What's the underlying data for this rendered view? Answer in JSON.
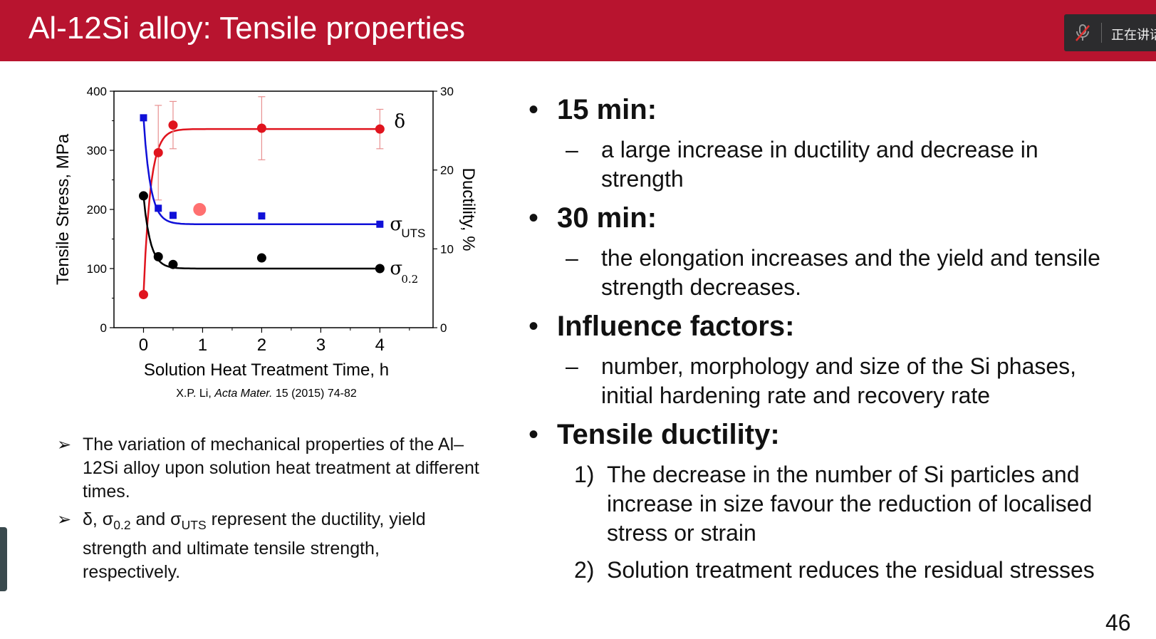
{
  "slide": {
    "title": "Al-12Si alloy: Tensile properties",
    "page_number": "46",
    "header_color": "#b8142f"
  },
  "meeting": {
    "status_text": "正在讲话",
    "mic_icon": "mic-muted-icon"
  },
  "chart_data": {
    "type": "scatter",
    "xlabel": "Solution Heat Treatment Time, h",
    "ylabel": "Tensile Stress, MPa",
    "y2label": "Ductility, %",
    "xlim": [
      -0.5,
      4.9
    ],
    "ylim": [
      0,
      400
    ],
    "y2lim": [
      0,
      30
    ],
    "xticks": [
      "0",
      "1",
      "2",
      "3",
      "4"
    ],
    "yticks": [
      "0",
      "100",
      "200",
      "300",
      "400"
    ],
    "y2ticks": [
      "0",
      "10",
      "20",
      "30"
    ],
    "series": [
      {
        "name": "δ",
        "axis": "right",
        "color": "#e0141e",
        "x": [
          0,
          0.25,
          0.5,
          2,
          4
        ],
        "y": [
          4.2,
          22.2,
          25.7,
          25.3,
          25.2
        ],
        "err": [
          0,
          6,
          3,
          4,
          2.5
        ],
        "marker": "circle"
      },
      {
        "name": "σUTS",
        "axis": "left",
        "color": "#1010d8",
        "x": [
          0,
          0.25,
          0.5,
          2,
          4
        ],
        "y": [
          355,
          202,
          190,
          189,
          175
        ],
        "marker": "square"
      },
      {
        "name": "σ0.2",
        "axis": "left",
        "color": "#000000",
        "x": [
          0,
          0.25,
          0.5,
          2,
          4
        ],
        "y": [
          223,
          120,
          107,
          118,
          100
        ],
        "marker": "circle"
      }
    ],
    "labels": {
      "delta": "δ",
      "sigma": "σ",
      "uts": "UTS",
      "yield": "0.2"
    },
    "citation_prefix": "X.P. Li,",
    "citation_journal": "Acta Mater.",
    "citation_suffix": "15 (2015) 74-82"
  },
  "notes": [
    {
      "text": "The variation of mechanical properties of the Al–12Si alloy upon solution heat treatment at different times."
    },
    {
      "p1": "δ, σ",
      "s1": "0.2",
      "p2": " and σ",
      "s2": "UTS",
      "p3": " represent the ductility, yield strength and ultimate tensile strength, respectively."
    }
  ],
  "right": {
    "b1": "15 min:",
    "b1_sub": "a large increase in ductility and decrease in strength",
    "b2": "30 min:",
    "b2_sub": "the elongation increases and the yield and tensile strength decreases.",
    "b3": "Influence factors:",
    "b3_sub": "number, morphology and size of the Si phases, initial hardening rate and recovery rate",
    "b4": "Tensile ductility:",
    "n1_label": "1)",
    "n1": "The decrease in the number of Si particles and increase in size favour the reduction of localised stress or strain",
    "n2_label": "2)",
    "n2": "Solution treatment reduces the residual stresses",
    "bullet_char": "•",
    "dash_char": "–",
    "arrow_char": "➢"
  }
}
